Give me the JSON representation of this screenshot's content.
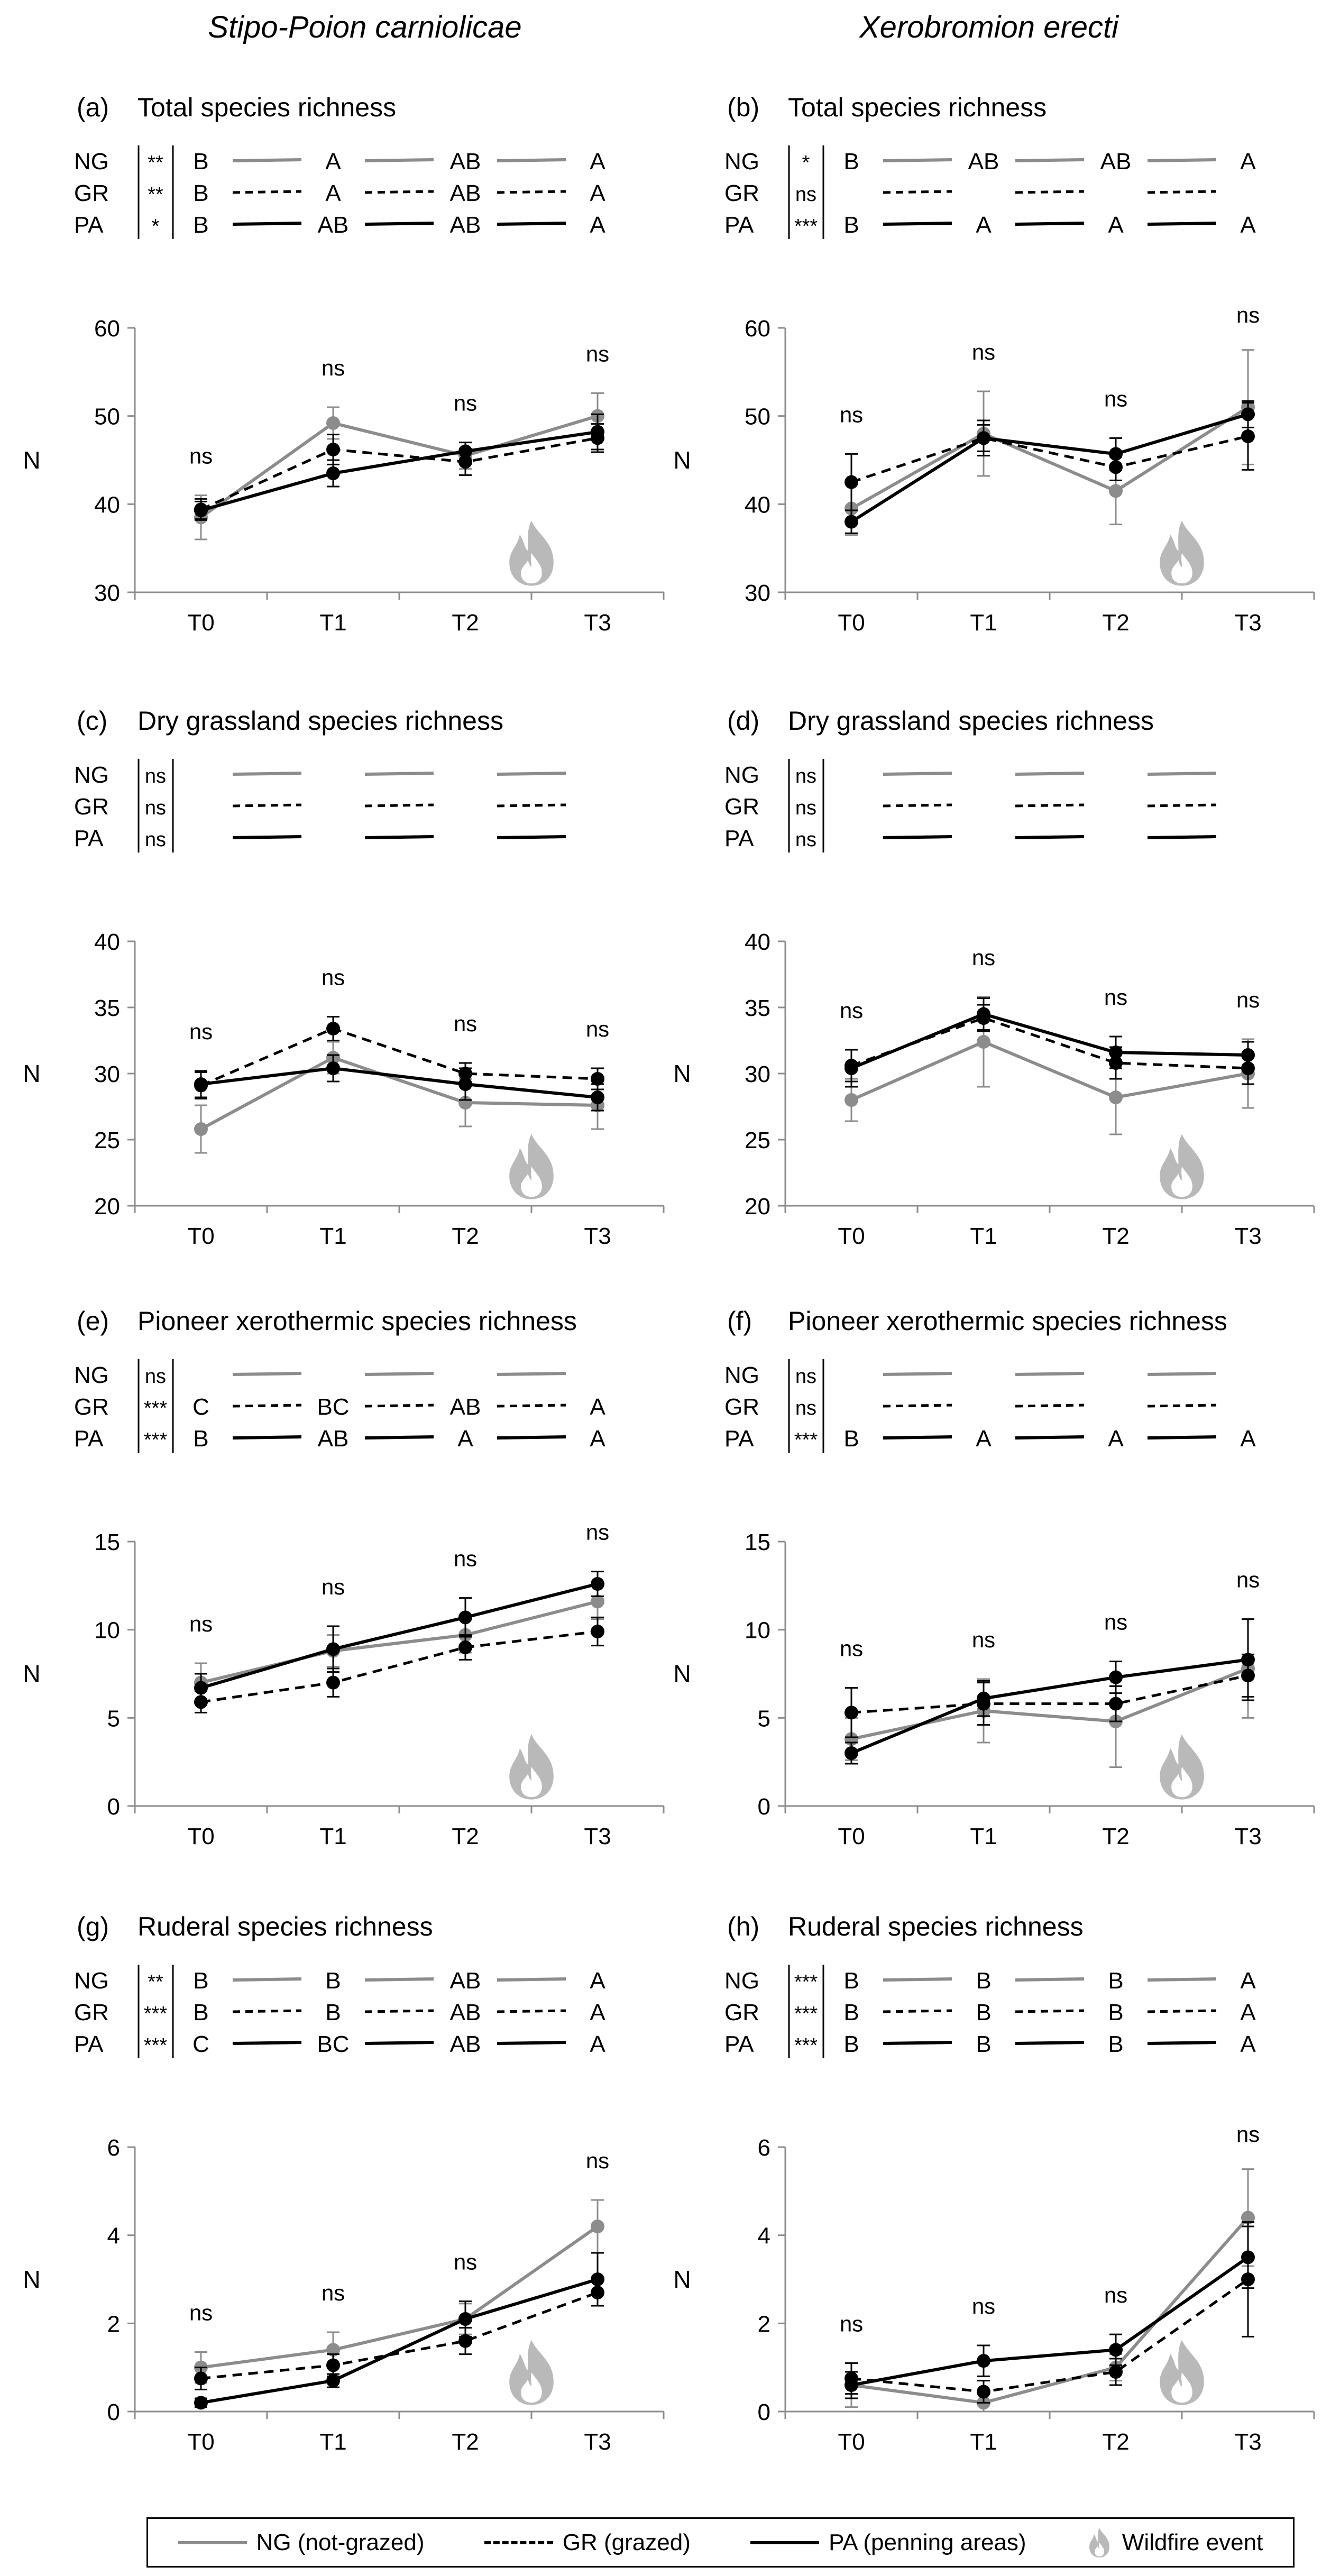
{
  "columns": [
    "Stipo-Poion carniolicae",
    "Xerobromion erecti"
  ],
  "series_names": [
    "NG",
    "GR",
    "PA"
  ],
  "colors": {
    "NG": "#8c8c8c",
    "GR": "#000000",
    "PA": "#000000",
    "flame": "#b9b9b9"
  },
  "legend": {
    "ng": "NG (not-grazed)",
    "gr": "GR (grazed)",
    "pa": "PA (penning areas)",
    "wildfire": "Wildfire event"
  },
  "chart_data": [
    {
      "type": "line",
      "panel": "(a)",
      "title": "Total species richness",
      "categories": [
        "T0",
        "T1",
        "T2",
        "T3"
      ],
      "ylabel": "N",
      "ylim": [
        30,
        60
      ],
      "yticks": [
        30,
        40,
        50,
        60
      ],
      "grid": false,
      "series": [
        {
          "name": "NG",
          "values": [
            38.5,
            49.2,
            45.5,
            50.0
          ],
          "err": [
            2.5,
            1.8,
            1.5,
            2.6
          ]
        },
        {
          "name": "GR",
          "values": [
            39.4,
            46.2,
            44.8,
            47.5
          ],
          "err": [
            1.2,
            1.7,
            1.5,
            1.6
          ]
        },
        {
          "name": "PA",
          "values": [
            39.3,
            43.5,
            46.0,
            48.2
          ],
          "err": [
            1.0,
            1.5,
            1.0,
            2.0
          ]
        }
      ],
      "point_labels": [
        "ns",
        "ns",
        "ns",
        "ns"
      ],
      "significance": {
        "NG": "**",
        "GR": "**",
        "PA": "*"
      },
      "letters": {
        "NG": [
          "B",
          "A",
          "AB",
          "A"
        ],
        "GR": [
          "B",
          "A",
          "AB",
          "A"
        ],
        "PA": [
          "B",
          "AB",
          "AB",
          "A"
        ]
      },
      "wildfire_after": "T2"
    },
    {
      "type": "line",
      "panel": "(b)",
      "title": "Total species richness",
      "categories": [
        "T0",
        "T1",
        "T2",
        "T3"
      ],
      "ylabel": "N",
      "ylim": [
        30,
        60
      ],
      "yticks": [
        30,
        40,
        50,
        60
      ],
      "grid": false,
      "series": [
        {
          "name": "NG",
          "values": [
            39.5,
            48.0,
            41.5,
            51.0
          ],
          "err": [
            3.0,
            4.8,
            3.8,
            6.5
          ]
        },
        {
          "name": "GR",
          "values": [
            42.5,
            47.5,
            44.2,
            47.7
          ],
          "err": [
            3.2,
            1.5,
            1.5,
            3.8
          ]
        },
        {
          "name": "PA",
          "values": [
            38.0,
            47.5,
            45.7,
            50.2
          ],
          "err": [
            1.3,
            2.0,
            1.8,
            1.5
          ]
        }
      ],
      "point_labels": [
        "ns",
        "ns",
        "ns",
        "ns"
      ],
      "significance": {
        "NG": "*",
        "GR": "ns",
        "PA": "***"
      },
      "letters": {
        "NG": [
          "B",
          "AB",
          "AB",
          "A"
        ],
        "GR": [
          "",
          "",
          "",
          ""
        ],
        "PA": [
          "B",
          "A",
          "A",
          "A"
        ]
      },
      "wildfire_after": "T2"
    },
    {
      "type": "line",
      "panel": "(c)",
      "title": "Dry grassland species richness",
      "categories": [
        "T0",
        "T1",
        "T2",
        "T3"
      ],
      "ylabel": "N",
      "ylim": [
        20,
        40
      ],
      "yticks": [
        20,
        25,
        30,
        35,
        40
      ],
      "grid": false,
      "series": [
        {
          "name": "NG",
          "values": [
            25.8,
            31.2,
            27.8,
            27.6
          ],
          "err": [
            1.8,
            1.2,
            1.8,
            1.8
          ]
        },
        {
          "name": "GR",
          "values": [
            29.1,
            33.4,
            30.0,
            29.6
          ],
          "err": [
            1.0,
            0.9,
            0.8,
            0.8
          ]
        },
        {
          "name": "PA",
          "values": [
            29.2,
            30.4,
            29.2,
            28.2
          ],
          "err": [
            1.0,
            1.0,
            1.2,
            1.0
          ]
        }
      ],
      "point_labels": [
        "ns",
        "ns",
        "ns",
        "ns"
      ],
      "significance": {
        "NG": "ns",
        "GR": "ns",
        "PA": "ns"
      },
      "letters": {
        "NG": [
          "",
          "",
          "",
          ""
        ],
        "GR": [
          "",
          "",
          "",
          ""
        ],
        "PA": [
          "",
          "",
          "",
          ""
        ]
      },
      "wildfire_after": "T2"
    },
    {
      "type": "line",
      "panel": "(d)",
      "title": "Dry grassland species richness",
      "categories": [
        "T0",
        "T1",
        "T2",
        "T3"
      ],
      "ylabel": "N",
      "ylim": [
        20,
        40
      ],
      "yticks": [
        20,
        25,
        30,
        35,
        40
      ],
      "grid": false,
      "series": [
        {
          "name": "NG",
          "values": [
            28.0,
            32.4,
            28.2,
            30.0
          ],
          "err": [
            1.6,
            3.4,
            2.8,
            2.6
          ]
        },
        {
          "name": "GR",
          "values": [
            30.6,
            34.2,
            30.8,
            30.4
          ],
          "err": [
            1.2,
            1.0,
            1.2,
            1.2
          ]
        },
        {
          "name": "PA",
          "values": [
            30.4,
            34.5,
            31.6,
            31.4
          ],
          "err": [
            1.4,
            1.2,
            1.2,
            1.0
          ]
        }
      ],
      "point_labels": [
        "ns",
        "ns",
        "ns",
        "ns"
      ],
      "significance": {
        "NG": "ns",
        "GR": "ns",
        "PA": "ns"
      },
      "letters": {
        "NG": [
          "",
          "",
          "",
          ""
        ],
        "GR": [
          "",
          "",
          "",
          ""
        ],
        "PA": [
          "",
          "",
          "",
          ""
        ]
      },
      "wildfire_after": "T2"
    },
    {
      "type": "line",
      "panel": "(e)",
      "title": "Pioneer xerothermic species richness",
      "categories": [
        "T0",
        "T1",
        "T2",
        "T3"
      ],
      "ylabel": "N",
      "ylim": [
        0,
        15
      ],
      "yticks": [
        0,
        5,
        10,
        15
      ],
      "grid": false,
      "series": [
        {
          "name": "NG",
          "values": [
            7.0,
            8.8,
            9.7,
            11.6
          ],
          "err": [
            1.1,
            0.9,
            1.0,
            1.0
          ]
        },
        {
          "name": "GR",
          "values": [
            5.9,
            7.0,
            9.0,
            9.9
          ],
          "err": [
            0.6,
            0.8,
            0.7,
            0.8
          ]
        },
        {
          "name": "PA",
          "values": [
            6.7,
            8.9,
            10.7,
            12.6
          ],
          "err": [
            0.8,
            1.3,
            1.1,
            0.7
          ]
        }
      ],
      "point_labels": [
        "ns",
        "ns",
        "ns",
        "ns"
      ],
      "significance": {
        "NG": "ns",
        "GR": "***",
        "PA": "***"
      },
      "letters": {
        "NG": [
          "",
          "",
          "",
          ""
        ],
        "GR": [
          "C",
          "BC",
          "AB",
          "A"
        ],
        "PA": [
          "B",
          "AB",
          "A",
          "A"
        ]
      },
      "wildfire_after": "T2"
    },
    {
      "type": "line",
      "panel": "(f)",
      "title": "Pioneer xerothermic species richness",
      "categories": [
        "T0",
        "T1",
        "T2",
        "T3"
      ],
      "ylabel": "N",
      "ylim": [
        0,
        15
      ],
      "yticks": [
        0,
        5,
        10,
        15
      ],
      "grid": false,
      "series": [
        {
          "name": "NG",
          "values": [
            3.8,
            5.4,
            4.8,
            7.8
          ],
          "err": [
            1.2,
            1.8,
            2.6,
            2.8
          ]
        },
        {
          "name": "GR",
          "values": [
            5.3,
            5.8,
            5.8,
            7.4
          ],
          "err": [
            1.4,
            1.2,
            1.0,
            1.2
          ]
        },
        {
          "name": "PA",
          "values": [
            3.0,
            6.1,
            7.3,
            8.3
          ],
          "err": [
            0.6,
            1.0,
            0.9,
            2.3
          ]
        }
      ],
      "point_labels": [
        "ns",
        "ns",
        "ns",
        "ns"
      ],
      "significance": {
        "NG": "ns",
        "GR": "ns",
        "PA": "***"
      },
      "letters": {
        "NG": [
          "",
          "",
          "",
          ""
        ],
        "GR": [
          "",
          "",
          "",
          ""
        ],
        "PA": [
          "B",
          "A",
          "A",
          "A"
        ]
      },
      "wildfire_after": "T2"
    },
    {
      "type": "line",
      "panel": "(g)",
      "title": "Ruderal species richness",
      "categories": [
        "T0",
        "T1",
        "T2",
        "T3"
      ],
      "ylabel": "N",
      "ylim": [
        0,
        6
      ],
      "yticks": [
        0,
        2,
        4,
        6
      ],
      "grid": false,
      "series": [
        {
          "name": "NG",
          "values": [
            1.0,
            1.4,
            2.1,
            4.2
          ],
          "err": [
            0.35,
            0.4,
            0.35,
            0.6
          ]
        },
        {
          "name": "GR",
          "values": [
            0.75,
            1.05,
            1.6,
            2.7
          ],
          "err": [
            0.25,
            0.25,
            0.3,
            0.3
          ]
        },
        {
          "name": "PA",
          "values": [
            0.2,
            0.7,
            2.1,
            3.0
          ],
          "err": [
            0.1,
            0.15,
            0.4,
            0.6
          ]
        }
      ],
      "point_labels": [
        "ns",
        "ns",
        "ns",
        "ns"
      ],
      "significance": {
        "NG": "**",
        "GR": "***",
        "PA": "***"
      },
      "letters": {
        "NG": [
          "B",
          "B",
          "AB",
          "A"
        ],
        "GR": [
          "B",
          "B",
          "AB",
          "A"
        ],
        "PA": [
          "C",
          "BC",
          "AB",
          "A"
        ]
      },
      "wildfire_after": "T2"
    },
    {
      "type": "line",
      "panel": "(h)",
      "title": "Ruderal species richness",
      "categories": [
        "T0",
        "T1",
        "T2",
        "T3"
      ],
      "ylabel": "N",
      "ylim": [
        0,
        6
      ],
      "yticks": [
        0,
        2,
        4,
        6
      ],
      "grid": false,
      "series": [
        {
          "name": "NG",
          "values": [
            0.6,
            0.2,
            1.0,
            4.4
          ],
          "err": [
            0.5,
            0.2,
            0.3,
            1.1
          ]
        },
        {
          "name": "GR",
          "values": [
            0.75,
            0.45,
            0.9,
            3.0
          ],
          "err": [
            0.35,
            0.25,
            0.3,
            1.3
          ]
        },
        {
          "name": "PA",
          "values": [
            0.6,
            1.15,
            1.4,
            3.5
          ],
          "err": [
            0.3,
            0.35,
            0.35,
            0.7
          ]
        }
      ],
      "point_labels": [
        "ns",
        "ns",
        "ns",
        "ns"
      ],
      "significance": {
        "NG": "***",
        "GR": "***",
        "PA": "***"
      },
      "letters": {
        "NG": [
          "B",
          "B",
          "B",
          "A"
        ],
        "GR": [
          "B",
          "B",
          "B",
          "A"
        ],
        "PA": [
          "B",
          "B",
          "B",
          "A"
        ]
      },
      "wildfire_after": "T2"
    }
  ]
}
